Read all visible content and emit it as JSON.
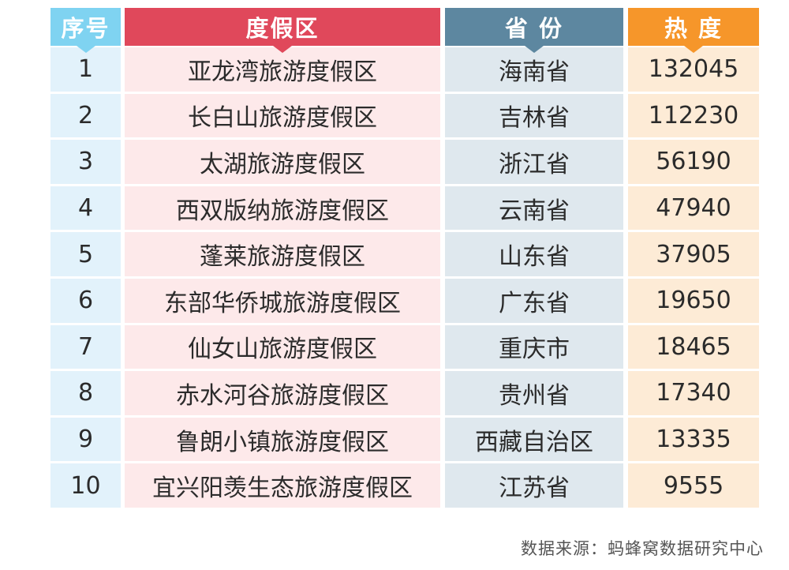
{
  "chart_data": {
    "type": "table",
    "columns": [
      "序号",
      "度假区",
      "省 份",
      "热 度"
    ],
    "rows": [
      {
        "rank": "1",
        "resort": "亚龙湾旅游度假区",
        "province": "海南省",
        "heat": 132045
      },
      {
        "rank": "2",
        "resort": "长白山旅游度假区",
        "province": "吉林省",
        "heat": 112230
      },
      {
        "rank": "3",
        "resort": "太湖旅游度假区",
        "province": "浙江省",
        "heat": 56190
      },
      {
        "rank": "4",
        "resort": "西双版纳旅游度假区",
        "province": "云南省",
        "heat": 47940
      },
      {
        "rank": "5",
        "resort": "蓬莱旅游度假区",
        "province": "山东省",
        "heat": 37905
      },
      {
        "rank": "6",
        "resort": "东部华侨城旅游度假区",
        "province": "广东省",
        "heat": 19650
      },
      {
        "rank": "7",
        "resort": "仙女山旅游度假区",
        "province": "重庆市",
        "heat": 18465
      },
      {
        "rank": "8",
        "resort": "赤水河谷旅游度假区",
        "province": "贵州省",
        "heat": 17340
      },
      {
        "rank": "9",
        "resort": "鲁朗小镇旅游度假区",
        "province": "西藏自治区",
        "heat": 13335
      },
      {
        "rank": "10",
        "resort": "宜兴阳羡生态旅游度假区",
        "province": "江苏省",
        "heat": 9555
      }
    ],
    "colors": {
      "rank_header": "#7fd3f1",
      "resort_header": "#e0485b",
      "province_header": "#5d87a0",
      "heat_header": "#f6962a"
    }
  },
  "source": "数据来源：蚂蜂窝数据研究中心"
}
